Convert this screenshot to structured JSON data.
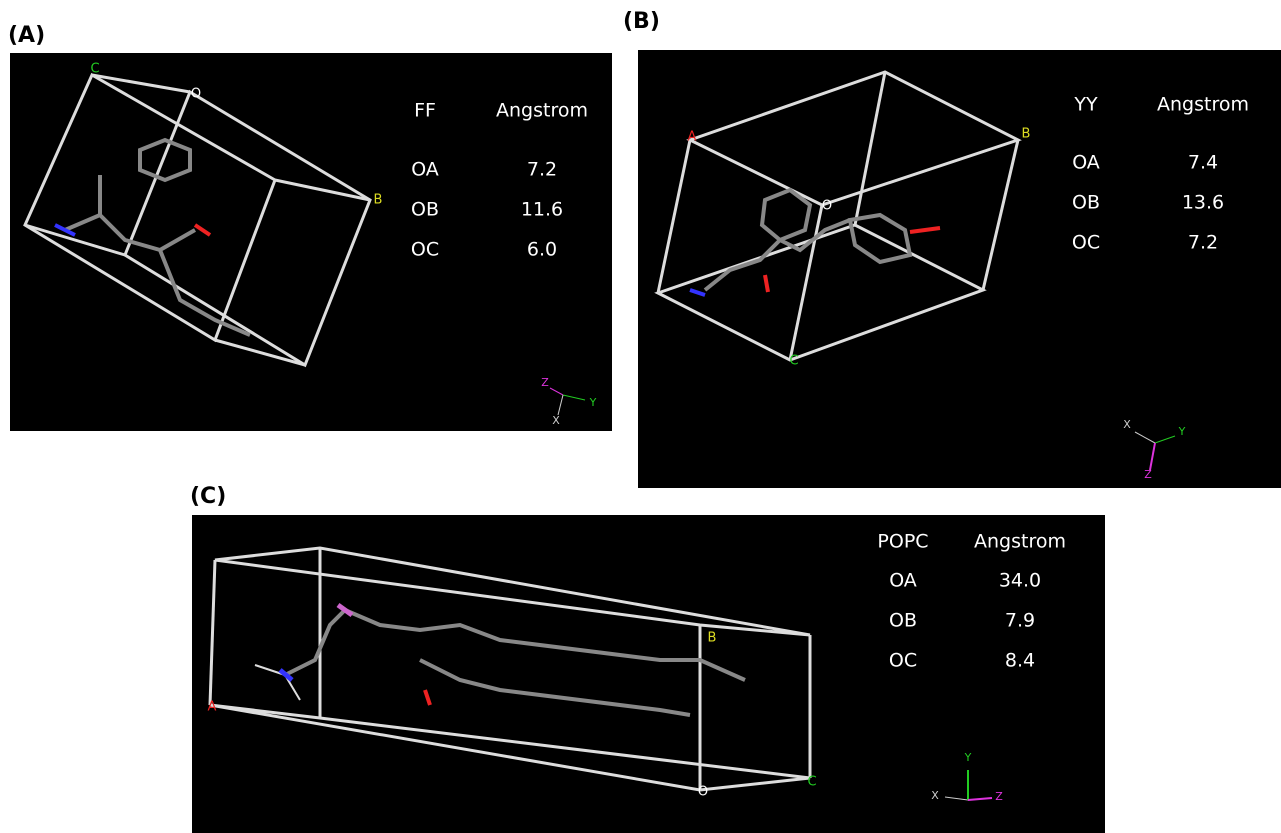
{
  "panels": [
    {
      "label": "(A)",
      "table": {
        "header": [
          "FF",
          "Angstrom"
        ],
        "rows": [
          [
            "OA",
            "7.2"
          ],
          [
            "OB",
            "11.6"
          ],
          [
            "OC",
            "6.0"
          ]
        ]
      },
      "cell_labels": [
        "C",
        "O",
        "B"
      ],
      "axis_labels": [
        "Z",
        "Y",
        "X"
      ]
    },
    {
      "label": "(B)",
      "table": {
        "header": [
          "YY",
          "Angstrom"
        ],
        "rows": [
          [
            "OA",
            "7.4"
          ],
          [
            "OB",
            "13.6"
          ],
          [
            "OC",
            "7.2"
          ]
        ]
      },
      "cell_labels": [
        "A",
        "B",
        "O",
        "C"
      ],
      "axis_labels": [
        "X",
        "Y",
        "Z"
      ]
    },
    {
      "label": "(C)",
      "table": {
        "header": [
          "POPC",
          "Angstrom"
        ],
        "rows": [
          [
            "OA",
            "34.0"
          ],
          [
            "OB",
            "7.9"
          ],
          [
            "OC",
            "8.4"
          ]
        ]
      },
      "cell_labels": [
        "A",
        "B",
        "C",
        "O"
      ],
      "axis_labels": [
        "X",
        "Y",
        "Z"
      ]
    }
  ]
}
